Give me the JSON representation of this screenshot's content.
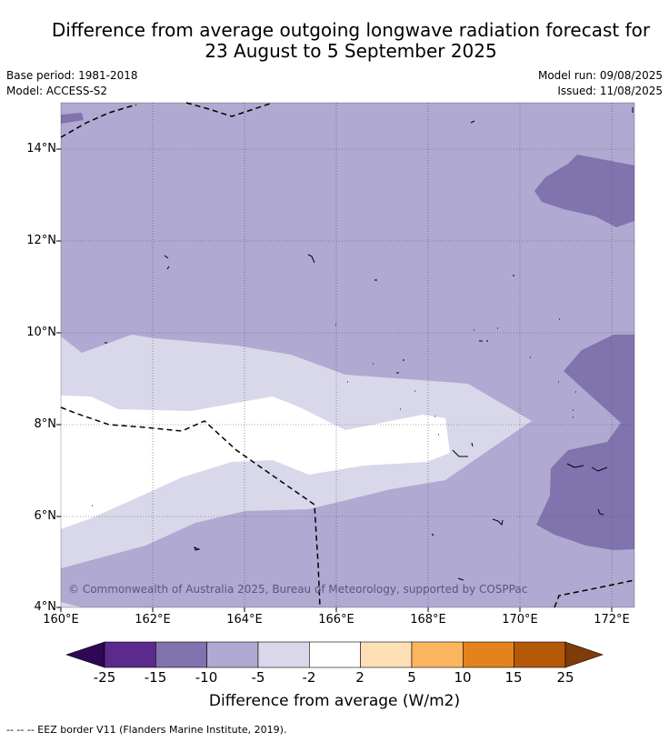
{
  "title_line1": "Difference from average outgoing longwave radiation forecast for",
  "title_line2": "23 August to 5 September 2025",
  "base_period": "Base period: 1981-2018",
  "model": "Model: ACCESS-S2",
  "model_run": "Model run: 09/08/2025",
  "issued": "Issued: 11/08/2025",
  "copyright": "© Commonwealth of Australia 2025, Bureau of Meteorology, supported by COSPPac",
  "lat_labels": [
    "14°N",
    "12°N",
    "10°N",
    "8°N",
    "6°N",
    "4°N"
  ],
  "lon_labels": [
    "160°E",
    "162°E",
    "164°E",
    "166°E",
    "168°E",
    "170°E",
    "172°E"
  ],
  "colorbar": {
    "title": "Difference from average (W/m2)",
    "ticks": [
      "-25",
      "-15",
      "-10",
      "-5",
      "-2",
      "2",
      "5",
      "10",
      "15",
      "25"
    ],
    "colors": [
      "#2e0854",
      "#5b2a8c",
      "#8073ae",
      "#b0a9d1",
      "#d8d8ea",
      "#ffffff",
      "#fde0b6",
      "#fbb55f",
      "#e2831b",
      "#b55908",
      "#7f3b08"
    ]
  },
  "footnote": "--  --  -- EEZ border V11 (Flanders Marine Institute, 2019)."
}
